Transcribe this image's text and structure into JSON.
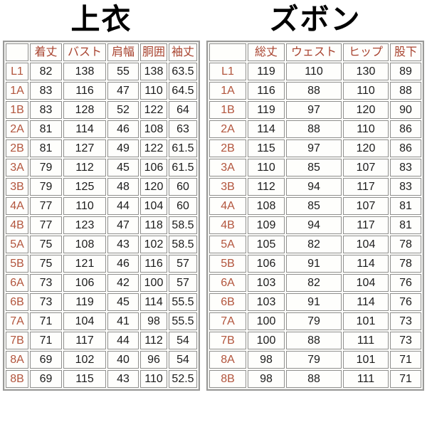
{
  "page": {
    "background": "#ffffff",
    "accent_text_color": "#a8432f",
    "value_text_color": "#1c1c1c",
    "title_text_color": "#000000",
    "cell_border_color": "#8f8f8d"
  },
  "chart_data": [
    {
      "type": "table",
      "title": "上衣",
      "columns": [
        "着丈",
        "バスト",
        "肩幅",
        "胴囲",
        "袖丈"
      ],
      "rows": [
        {
          "label": "L1",
          "values": [
            "82",
            "138",
            "55",
            "138",
            "63.5"
          ]
        },
        {
          "label": "1A",
          "values": [
            "83",
            "116",
            "47",
            "110",
            "64.5"
          ]
        },
        {
          "label": "1B",
          "values": [
            "83",
            "128",
            "52",
            "122",
            "64"
          ]
        },
        {
          "label": "2A",
          "values": [
            "81",
            "114",
            "46",
            "108",
            "63"
          ]
        },
        {
          "label": "2B",
          "values": [
            "81",
            "127",
            "49",
            "122",
            "61.5"
          ]
        },
        {
          "label": "3A",
          "values": [
            "79",
            "112",
            "45",
            "106",
            "61.5"
          ]
        },
        {
          "label": "3B",
          "values": [
            "79",
            "125",
            "48",
            "120",
            "60"
          ]
        },
        {
          "label": "4A",
          "values": [
            "77",
            "110",
            "44",
            "104",
            "60"
          ]
        },
        {
          "label": "4B",
          "values": [
            "77",
            "123",
            "47",
            "118",
            "58.5"
          ]
        },
        {
          "label": "5A",
          "values": [
            "75",
            "108",
            "43",
            "102",
            "58.5"
          ]
        },
        {
          "label": "5B",
          "values": [
            "75",
            "121",
            "46",
            "116",
            "57"
          ]
        },
        {
          "label": "6A",
          "values": [
            "73",
            "106",
            "42",
            "100",
            "57"
          ]
        },
        {
          "label": "6B",
          "values": [
            "73",
            "119",
            "45",
            "114",
            "55.5"
          ]
        },
        {
          "label": "7A",
          "values": [
            "71",
            "104",
            "41",
            "98",
            "55.5"
          ]
        },
        {
          "label": "7B",
          "values": [
            "71",
            "117",
            "44",
            "112",
            "54"
          ]
        },
        {
          "label": "8A",
          "values": [
            "69",
            "102",
            "40",
            "96",
            "54"
          ]
        },
        {
          "label": "8B",
          "values": [
            "69",
            "115",
            "43",
            "110",
            "52.5"
          ]
        }
      ]
    },
    {
      "type": "table",
      "title": "ズボン",
      "columns": [
        "総丈",
        "ウェスト",
        "ヒップ",
        "股下"
      ],
      "rows": [
        {
          "label": "L1",
          "values": [
            "119",
            "110",
            "130",
            "89"
          ]
        },
        {
          "label": "1A",
          "values": [
            "116",
            "88",
            "110",
            "88"
          ]
        },
        {
          "label": "1B",
          "values": [
            "119",
            "97",
            "120",
            "90"
          ]
        },
        {
          "label": "2A",
          "values": [
            "114",
            "88",
            "110",
            "86"
          ]
        },
        {
          "label": "2B",
          "values": [
            "115",
            "97",
            "120",
            "86"
          ]
        },
        {
          "label": "3A",
          "values": [
            "110",
            "85",
            "107",
            "83"
          ]
        },
        {
          "label": "3B",
          "values": [
            "112",
            "94",
            "117",
            "83"
          ]
        },
        {
          "label": "4A",
          "values": [
            "108",
            "85",
            "107",
            "81"
          ]
        },
        {
          "label": "4B",
          "values": [
            "109",
            "94",
            "117",
            "81"
          ]
        },
        {
          "label": "5A",
          "values": [
            "105",
            "82",
            "104",
            "78"
          ]
        },
        {
          "label": "5B",
          "values": [
            "106",
            "91",
            "114",
            "78"
          ]
        },
        {
          "label": "6A",
          "values": [
            "103",
            "82",
            "104",
            "76"
          ]
        },
        {
          "label": "6B",
          "values": [
            "103",
            "91",
            "114",
            "76"
          ]
        },
        {
          "label": "7A",
          "values": [
            "100",
            "79",
            "101",
            "73"
          ]
        },
        {
          "label": "7B",
          "values": [
            "100",
            "88",
            "111",
            "73"
          ]
        },
        {
          "label": "8A",
          "values": [
            "98",
            "79",
            "101",
            "71"
          ]
        },
        {
          "label": "8B",
          "values": [
            "98",
            "88",
            "111",
            "71"
          ]
        }
      ]
    }
  ]
}
